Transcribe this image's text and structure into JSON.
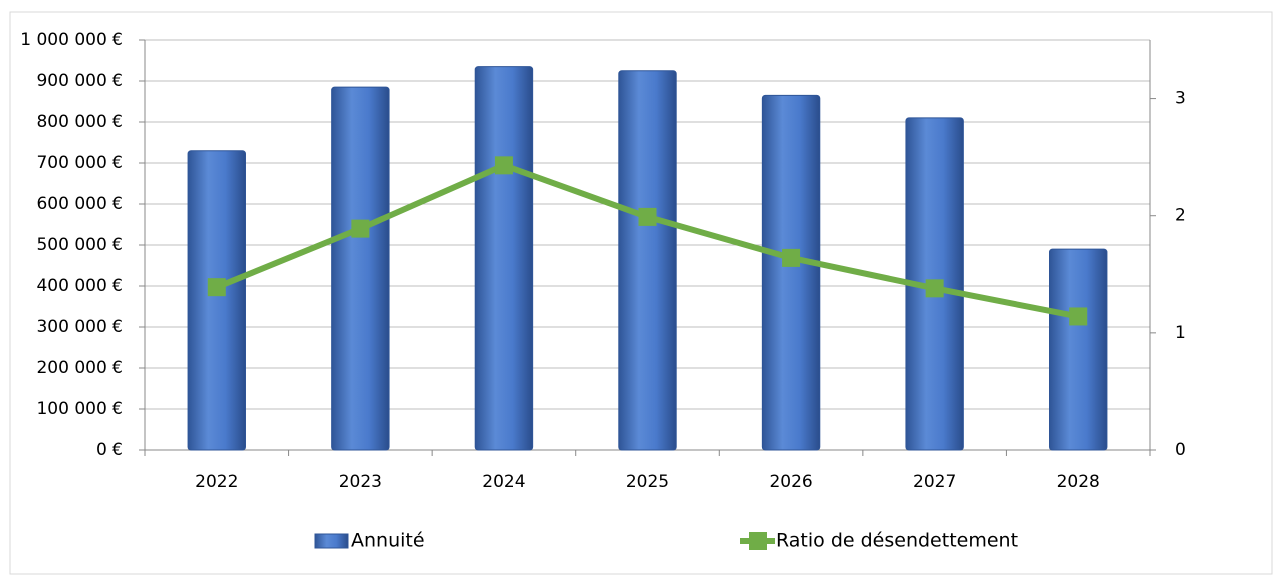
{
  "chart_data": {
    "type": "bar",
    "categories": [
      "2022",
      "2023",
      "2024",
      "2025",
      "2026",
      "2027",
      "2028"
    ],
    "series": [
      {
        "name": "Annuité",
        "type": "bar",
        "color": "#4472c4",
        "values": [
          730000,
          885000,
          935000,
          925000,
          865000,
          810000,
          490000
        ]
      },
      {
        "name": "Ratio de désendettement",
        "type": "line",
        "axis": "y2",
        "color": "#70ad47",
        "values": [
          1.39,
          1.89,
          2.43,
          1.99,
          1.64,
          1.38,
          1.14
        ]
      }
    ],
    "ylim": [
      0,
      1000000
    ],
    "yticks": [
      {
        "value": 0,
        "label": "0 €"
      },
      {
        "value": 100000,
        "label": "100 000 €"
      },
      {
        "value": 200000,
        "label": "200 000 €"
      },
      {
        "value": 300000,
        "label": "300 000 €"
      },
      {
        "value": 400000,
        "label": "400 000 €"
      },
      {
        "value": 500000,
        "label": "500 000 €"
      },
      {
        "value": 600000,
        "label": "600 000 €"
      },
      {
        "value": 700000,
        "label": "700 000 €"
      },
      {
        "value": 800000,
        "label": "800 000 €"
      },
      {
        "value": 900000,
        "label": "900 000 €"
      },
      {
        "value": 1000000,
        "label": "1 000 000 €"
      }
    ],
    "y2lim": [
      0,
      3.5
    ],
    "y2ticks": [
      0,
      1,
      2,
      3
    ],
    "grid": true,
    "legend": "bottom"
  }
}
